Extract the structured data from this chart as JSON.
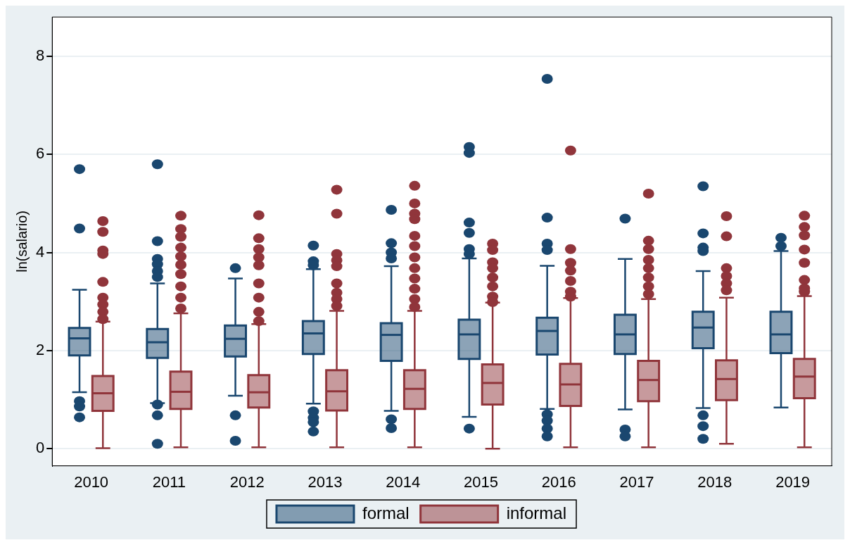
{
  "chart_data": {
    "type": "box",
    "ylabel": "ln(salario)",
    "categories": [
      "2010",
      "2011",
      "2012",
      "2013",
      "2014",
      "2015",
      "2016",
      "2017",
      "2018",
      "2019"
    ],
    "ylim": [
      -0.35,
      8.8
    ],
    "yticks": [
      0,
      2,
      4,
      6,
      8
    ],
    "grid": "y",
    "legend": "bottom",
    "series": [
      {
        "name": "formal",
        "color": "#1a476f",
        "boxes": [
          {
            "low": 1.15,
            "q1": 1.9,
            "median": 2.25,
            "q3": 2.46,
            "high": 3.24,
            "outliers": [
              5.7,
              4.49,
              0.97,
              0.86,
              0.64
            ]
          },
          {
            "low": 0.93,
            "q1": 1.85,
            "median": 2.17,
            "q3": 2.44,
            "high": 3.37,
            "outliers": [
              5.8,
              4.23,
              3.87,
              3.76,
              3.62,
              3.5,
              0.9,
              0.68,
              0.1
            ]
          },
          {
            "low": 1.08,
            "q1": 1.88,
            "median": 2.24,
            "q3": 2.51,
            "high": 3.47,
            "outliers": [
              3.68,
              0.68,
              0.16
            ]
          },
          {
            "low": 0.92,
            "q1": 1.93,
            "median": 2.35,
            "q3": 2.6,
            "high": 3.66,
            "outliers": [
              4.14,
              3.82,
              3.74,
              0.76,
              0.63,
              0.54,
              0.35
            ]
          },
          {
            "low": 0.77,
            "q1": 1.79,
            "median": 2.32,
            "q3": 2.56,
            "high": 3.72,
            "outliers": [
              4.87,
              4.19,
              4.0,
              3.88,
              0.6,
              0.42
            ]
          },
          {
            "low": 0.65,
            "q1": 1.83,
            "median": 2.33,
            "q3": 2.63,
            "high": 3.88,
            "outliers": [
              6.15,
              6.03,
              4.61,
              4.4,
              4.07,
              3.97,
              0.41
            ]
          },
          {
            "low": 0.81,
            "q1": 1.92,
            "median": 2.4,
            "q3": 2.67,
            "high": 3.73,
            "outliers": [
              7.54,
              4.71,
              4.18,
              4.05,
              0.7,
              0.57,
              0.41,
              0.25
            ]
          },
          {
            "low": 0.8,
            "q1": 1.93,
            "median": 2.33,
            "q3": 2.73,
            "high": 3.87,
            "outliers": [
              4.69,
              0.39,
              0.25
            ]
          },
          {
            "low": 0.83,
            "q1": 2.05,
            "median": 2.47,
            "q3": 2.79,
            "high": 3.62,
            "outliers": [
              5.35,
              4.39,
              4.1,
              4.03,
              0.68,
              0.46,
              0.2
            ]
          },
          {
            "low": 0.84,
            "q1": 1.95,
            "median": 2.33,
            "q3": 2.79,
            "high": 4.03,
            "outliers": [
              4.3,
              4.13
            ]
          }
        ]
      },
      {
        "name": "informal",
        "color": "#90353b",
        "boxes": [
          {
            "low": 0.01,
            "q1": 0.77,
            "median": 1.13,
            "q3": 1.48,
            "high": 2.59,
            "outliers": [
              4.64,
              4.42,
              4.04,
              3.97,
              3.4,
              3.08,
              2.94,
              2.79,
              2.64
            ]
          },
          {
            "low": 0.03,
            "q1": 0.81,
            "median": 1.16,
            "q3": 1.57,
            "high": 2.76,
            "outliers": [
              4.75,
              4.48,
              4.32,
              4.1,
              3.92,
              3.75,
              3.56,
              3.31,
              3.08,
              2.86
            ]
          },
          {
            "low": 0.03,
            "q1": 0.84,
            "median": 1.15,
            "q3": 1.5,
            "high": 2.54,
            "outliers": [
              4.76,
              4.29,
              4.07,
              3.9,
              3.74,
              3.37,
              3.08,
              2.79,
              2.6
            ]
          },
          {
            "low": 0.03,
            "q1": 0.78,
            "median": 1.17,
            "q3": 1.6,
            "high": 2.81,
            "outliers": [
              5.28,
              4.79,
              3.97,
              3.84,
              3.72,
              3.37,
              3.18,
              3.05,
              2.91
            ]
          },
          {
            "low": 0.03,
            "q1": 0.81,
            "median": 1.22,
            "q3": 1.6,
            "high": 2.81,
            "outliers": [
              5.36,
              5.0,
              4.79,
              4.68,
              4.34,
              4.13,
              3.9,
              3.68,
              3.47,
              3.26,
              3.05,
              2.89
            ]
          },
          {
            "low": 0.0,
            "q1": 0.9,
            "median": 1.34,
            "q3": 1.72,
            "high": 2.98,
            "outliers": [
              4.18,
              4.05,
              3.8,
              3.68,
              3.49,
              3.31,
              3.1,
              2.99
            ]
          },
          {
            "low": 0.03,
            "q1": 0.87,
            "median": 1.31,
            "q3": 1.73,
            "high": 3.07,
            "outliers": [
              6.08,
              4.07,
              3.79,
              3.63,
              3.42,
              3.2,
              3.1
            ]
          },
          {
            "low": 0.03,
            "q1": 0.97,
            "median": 1.4,
            "q3": 1.79,
            "high": 3.05,
            "outliers": [
              5.2,
              4.24,
              4.07,
              3.85,
              3.68,
              3.49,
              3.31,
              3.15
            ]
          },
          {
            "low": 0.1,
            "q1": 0.99,
            "median": 1.42,
            "q3": 1.8,
            "high": 3.08,
            "outliers": [
              4.74,
              4.33,
              3.68,
              3.52,
              3.37,
              3.23
            ]
          },
          {
            "low": 0.03,
            "q1": 1.03,
            "median": 1.47,
            "q3": 1.83,
            "high": 3.11,
            "outliers": [
              4.75,
              4.52,
              4.35,
              4.06,
              3.79,
              3.44,
              3.27,
              3.2
            ]
          }
        ]
      }
    ]
  }
}
